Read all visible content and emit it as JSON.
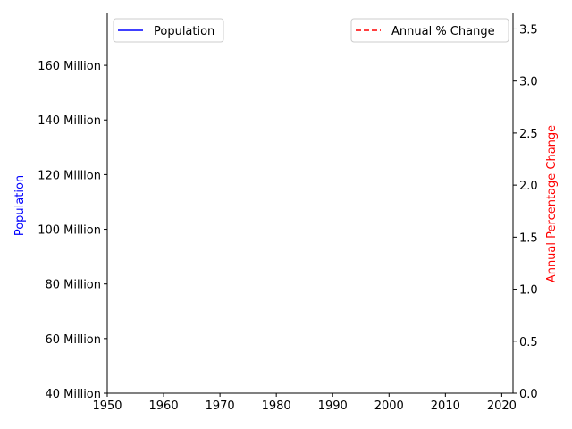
{
  "chart_data": {
    "type": "line",
    "x_ticks": [
      "1950",
      "1960",
      "1970",
      "1980",
      "1990",
      "2000",
      "2010",
      "2020"
    ],
    "xlim": [
      1950,
      2022
    ],
    "y_left": {
      "label": "Population",
      "label_color": "#0000ff",
      "ticks": [
        "40 Million",
        "60 Million",
        "80 Million",
        "100 Million",
        "120 Million",
        "140 Million",
        "160 Million"
      ],
      "lim": [
        40000000,
        179000000
      ]
    },
    "y_right": {
      "label": "Annual Percentage Change",
      "label_color": "#ff0000",
      "ticks": [
        "0.0",
        "0.5",
        "1.0",
        "1.5",
        "2.0",
        "2.5",
        "3.0",
        "3.5"
      ],
      "lim": [
        0,
        3.65
      ]
    },
    "series": [
      {
        "name": "Population",
        "color": "#0000ff",
        "style": "solid",
        "axis": "left",
        "values": []
      },
      {
        "name": "Annual % Change",
        "color": "#ff0000",
        "style": "dashed",
        "axis": "right",
        "values": []
      }
    ],
    "legends": [
      {
        "position": "top-left",
        "entries": [
          "Population"
        ]
      },
      {
        "position": "top-right",
        "entries": [
          "Annual % Change"
        ]
      }
    ],
    "grid": false
  }
}
